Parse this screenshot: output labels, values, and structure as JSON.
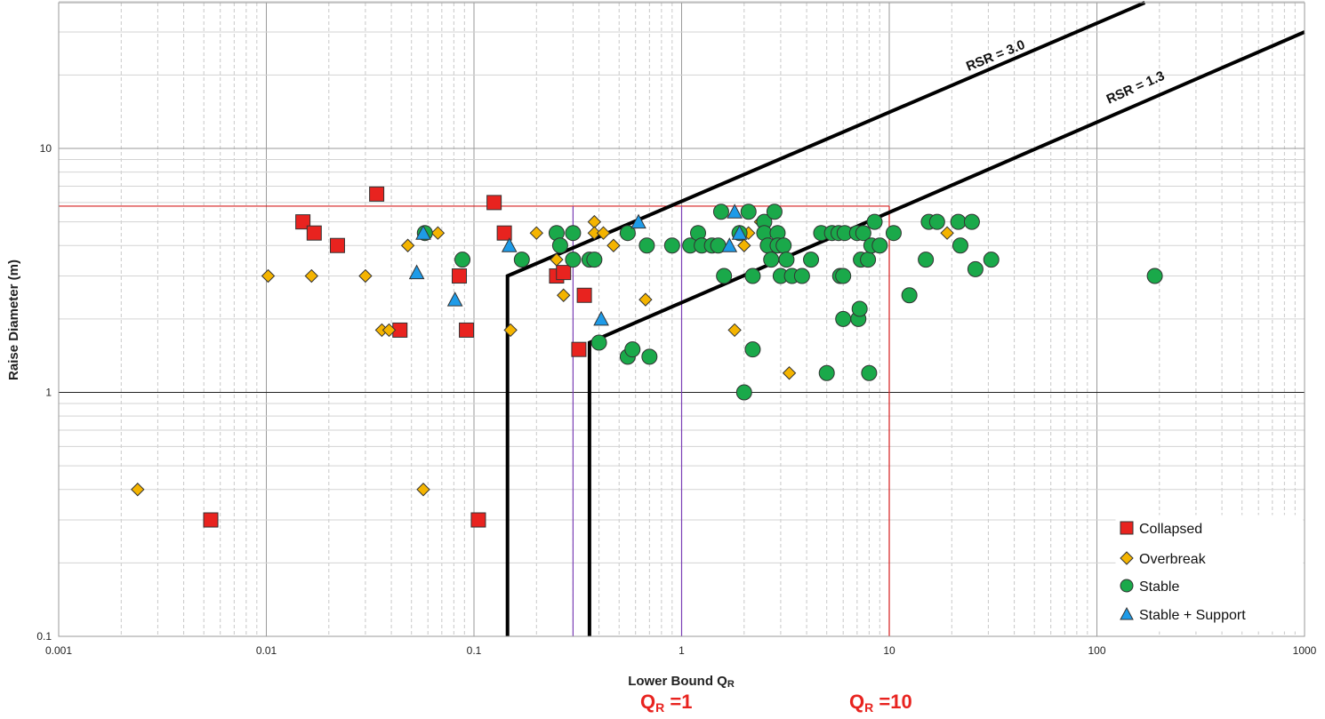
{
  "chart_data": {
    "type": "scatter",
    "xlabel_main": "Lower Bound Q",
    "xlabel_sub": "R",
    "ylabel": "Raise Diameter (m)",
    "x_scale": "log",
    "y_scale": "log",
    "xlim": [
      0.001,
      1000
    ],
    "ylim": [
      0.1,
      50
    ],
    "grid": true,
    "legend_position": "bottom-right",
    "x_tick_labels": [
      "0.001",
      "0.01",
      "0.1",
      "1",
      "10",
      "100",
      "1000"
    ],
    "y_tick_labels": [
      "0.1",
      "1",
      "10"
    ],
    "series": [
      {
        "name": "Collapsed",
        "marker": "square",
        "color": "#e8231f",
        "points": [
          [
            0.0054,
            0.3
          ],
          [
            0.015,
            5.0
          ],
          [
            0.017,
            4.5
          ],
          [
            0.022,
            4.0
          ],
          [
            0.034,
            6.5
          ],
          [
            0.044,
            1.8
          ],
          [
            0.085,
            3.0
          ],
          [
            0.092,
            1.8
          ],
          [
            0.105,
            0.3
          ],
          [
            0.125,
            6.0
          ],
          [
            0.14,
            4.5
          ],
          [
            0.25,
            3.0
          ],
          [
            0.27,
            3.1
          ],
          [
            0.32,
            1.5
          ],
          [
            0.34,
            2.5
          ]
        ]
      },
      {
        "name": "Overbreak",
        "marker": "diamond",
        "color": "#f4b400",
        "points": [
          [
            0.0024,
            0.4
          ],
          [
            0.0102,
            3.0
          ],
          [
            0.0165,
            3.0
          ],
          [
            0.03,
            3.0
          ],
          [
            0.036,
            1.8
          ],
          [
            0.039,
            1.8
          ],
          [
            0.048,
            4.0
          ],
          [
            0.057,
            0.4
          ],
          [
            0.067,
            4.5
          ],
          [
            0.15,
            1.8
          ],
          [
            0.2,
            4.5
          ],
          [
            0.25,
            3.5
          ],
          [
            0.27,
            2.5
          ],
          [
            0.38,
            5.0
          ],
          [
            0.38,
            4.5
          ],
          [
            0.42,
            4.5
          ],
          [
            0.47,
            4.0
          ],
          [
            0.67,
            2.4
          ],
          [
            1.8,
            1.8
          ],
          [
            2.0,
            4.0
          ],
          [
            2.1,
            4.5
          ],
          [
            2.4,
            5.0
          ],
          [
            3.3,
            1.2
          ],
          [
            19.0,
            4.5
          ]
        ]
      },
      {
        "name": "Stable",
        "marker": "circle",
        "color": "#1aa94a",
        "points": [
          [
            0.058,
            4.5
          ],
          [
            0.088,
            3.5
          ],
          [
            0.17,
            3.5
          ],
          [
            0.25,
            4.5
          ],
          [
            0.26,
            4.0
          ],
          [
            0.3,
            4.5
          ],
          [
            0.3,
            3.5
          ],
          [
            0.36,
            3.5
          ],
          [
            0.38,
            3.5
          ],
          [
            0.4,
            1.6
          ],
          [
            0.55,
            4.5
          ],
          [
            0.55,
            1.4
          ],
          [
            0.58,
            1.5
          ],
          [
            0.68,
            4.0
          ],
          [
            0.7,
            1.4
          ],
          [
            0.9,
            4.0
          ],
          [
            1.1,
            4.0
          ],
          [
            1.2,
            4.5
          ],
          [
            1.25,
            4.0
          ],
          [
            1.4,
            4.0
          ],
          [
            1.5,
            4.0
          ],
          [
            1.55,
            5.5
          ],
          [
            1.6,
            3.0
          ],
          [
            1.9,
            4.5
          ],
          [
            2.0,
            1.0
          ],
          [
            2.1,
            5.5
          ],
          [
            2.2,
            3.0
          ],
          [
            2.2,
            1.5
          ],
          [
            2.5,
            5.0
          ],
          [
            2.5,
            4.5
          ],
          [
            2.6,
            4.0
          ],
          [
            2.7,
            3.5
          ],
          [
            2.8,
            5.5
          ],
          [
            2.9,
            4.5
          ],
          [
            2.9,
            4.0
          ],
          [
            3.0,
            3.0
          ],
          [
            3.1,
            4.0
          ],
          [
            3.2,
            3.5
          ],
          [
            3.4,
            3.0
          ],
          [
            3.8,
            3.0
          ],
          [
            4.2,
            3.5
          ],
          [
            4.7,
            4.5
          ],
          [
            5.0,
            1.2
          ],
          [
            5.3,
            4.5
          ],
          [
            5.7,
            4.5
          ],
          [
            5.8,
            3.0
          ],
          [
            6.0,
            3.0
          ],
          [
            6.0,
            2.0
          ],
          [
            6.1,
            4.5
          ],
          [
            7.0,
            4.5
          ],
          [
            7.1,
            2.0
          ],
          [
            7.2,
            2.2
          ],
          [
            7.3,
            3.5
          ],
          [
            7.5,
            4.5
          ],
          [
            7.9,
            3.5
          ],
          [
            8.0,
            1.2
          ],
          [
            8.2,
            4.0
          ],
          [
            8.5,
            5.0
          ],
          [
            9.0,
            4.0
          ],
          [
            10.5,
            4.5
          ],
          [
            12.5,
            2.5
          ],
          [
            15.0,
            3.5
          ],
          [
            15.5,
            5.0
          ],
          [
            17.0,
            5.0
          ],
          [
            21.5,
            5.0
          ],
          [
            22.0,
            4.0
          ],
          [
            25.0,
            5.0
          ],
          [
            26.0,
            3.2
          ],
          [
            31.0,
            3.5
          ],
          [
            190.0,
            3.0
          ]
        ]
      },
      {
        "name": "Stable + Support",
        "marker": "triangle",
        "color": "#1e9be8",
        "points": [
          [
            0.053,
            3.1
          ],
          [
            0.057,
            4.5
          ],
          [
            0.081,
            2.4
          ],
          [
            0.148,
            4.0
          ],
          [
            0.41,
            2.0
          ],
          [
            0.62,
            5.0
          ],
          [
            1.7,
            4.0
          ],
          [
            1.8,
            5.5
          ],
          [
            1.9,
            4.5
          ]
        ]
      }
    ],
    "reference_lines": [
      {
        "name": "RSR = 3.0",
        "label": "RSR = 3.0",
        "points": [
          [
            0.145,
            0.1
          ],
          [
            0.145,
            3.0
          ],
          [
            170,
            50
          ]
        ]
      },
      {
        "name": "RSR = 1.3",
        "label": "RSR = 1.3",
        "points": [
          [
            0.36,
            0.1
          ],
          [
            0.36,
            1.6
          ],
          [
            1000,
            30
          ]
        ]
      }
    ],
    "red_guides": {
      "x": 10,
      "y": 5.8
    },
    "purple_guides": [
      0.3,
      1.0
    ]
  },
  "notes": {
    "qr1_main": "Q",
    "qr1_sub": "R",
    "qr1_value": " =1",
    "qr10_main": "Q",
    "qr10_sub": "R",
    "qr10_value": " =10"
  }
}
